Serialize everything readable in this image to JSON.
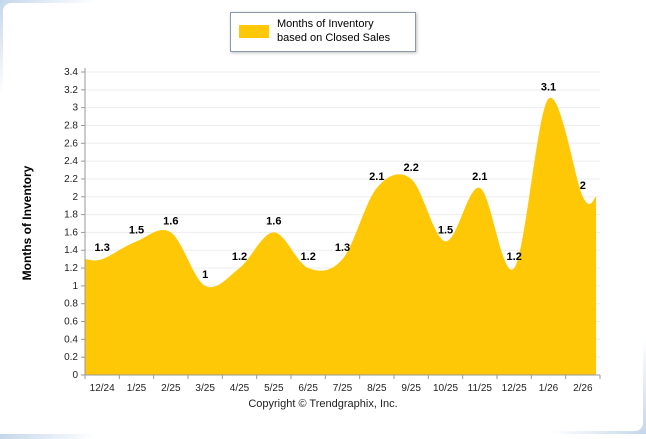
{
  "legend": {
    "label": "Months of Inventory based on Closed Sales"
  },
  "ylabel": "Months of Inventory",
  "footer": "Copyright © Trendgraphix, Inc.",
  "chart_data": {
    "type": "area",
    "title": "Months of Inventory based on Closed Sales",
    "categories": [
      "12/24",
      "1/25",
      "2/25",
      "3/25",
      "4/25",
      "5/25",
      "6/25",
      "7/25",
      "8/25",
      "9/25",
      "10/25",
      "11/25",
      "12/25",
      "1/26",
      "2/26"
    ],
    "values": [
      1.3,
      1.5,
      1.6,
      1,
      1.2,
      1.6,
      1.2,
      1.3,
      2.1,
      2.2,
      1.5,
      2.1,
      1.2,
      3.1,
      2
    ],
    "xlabel": "",
    "ylabel": "Months of Inventory",
    "ylim": [
      0,
      3.4
    ],
    "y_tick_step": 0.2,
    "y_tick_labels": [
      "0",
      "0.2",
      "0.4",
      "0.6",
      "0.8",
      "1",
      "1.2",
      "1.4",
      "1.6",
      "1.8",
      "2",
      "2.2",
      "2.4",
      "2.6",
      "2.8",
      "3",
      "3.2",
      "3.4"
    ],
    "fill_color": "#ffc806",
    "grid": "horizontal-light",
    "legend_position": "top-center",
    "data_labels": true
  }
}
